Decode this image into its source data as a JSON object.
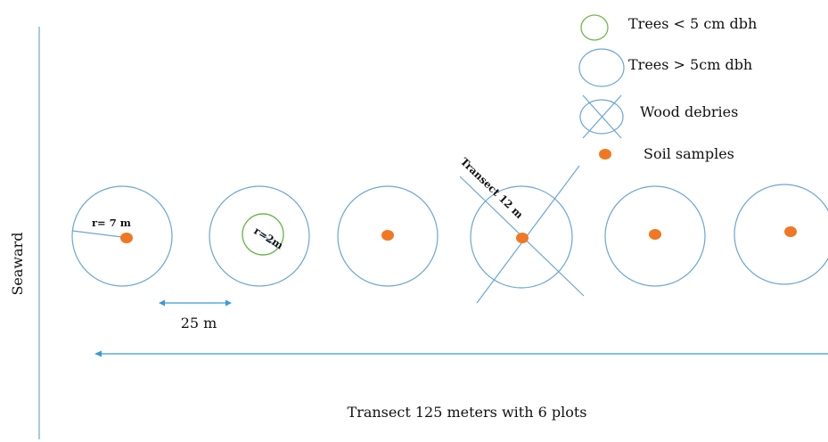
{
  "diagram": {
    "side_label": "Seaward",
    "spacing_label": "25 m",
    "transect_label": "Transect 125 meters with 6 plots",
    "radius_large_label": "r= 7 m",
    "radius_small_label": "r=2m",
    "diag_transect_label": "Transect 12 m",
    "plot_count": 6
  },
  "legend": [
    {
      "label": "Trees < 5 cm dbh",
      "symbol": "small-circle"
    },
    {
      "label": "Trees > 5cm dbh",
      "symbol": "large-circle"
    },
    {
      "label": "Wood debries",
      "symbol": "crossed-circle"
    },
    {
      "label": "Soil samples",
      "symbol": "dot"
    }
  ],
  "colors": {
    "plot_circle": "#6aa6d6",
    "small_circle": "#6fb84a",
    "soil_dot": "#f07822",
    "arrow": "#3a9bd5",
    "axis_line": "#6aa6d6"
  }
}
